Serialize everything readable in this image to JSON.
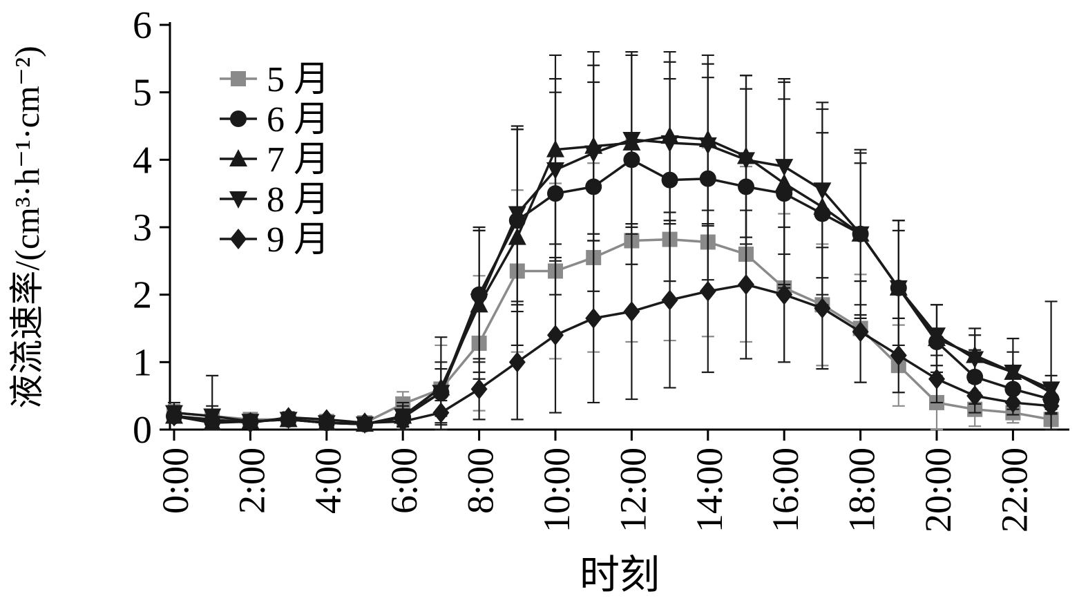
{
  "figure": {
    "background": "#ffffff"
  },
  "colors": {
    "axis": "#000000",
    "gray_series": "#8a8a8a",
    "black_series": "#1a1a1a"
  },
  "chart_data": {
    "type": "line",
    "title": "",
    "xlabel": "时刻",
    "ylabel": "液流速率/(cm³·h⁻¹·cm⁻²)",
    "ylim": [
      0,
      6
    ],
    "yticks": [
      0,
      1,
      2,
      3,
      4,
      5,
      6
    ],
    "x_hours": [
      0,
      1,
      2,
      3,
      4,
      5,
      6,
      7,
      8,
      9,
      10,
      11,
      12,
      13,
      14,
      15,
      16,
      17,
      18,
      19,
      20,
      21,
      22,
      23
    ],
    "xtick_hours": [
      0,
      2,
      4,
      6,
      8,
      10,
      12,
      14,
      16,
      18,
      20,
      22
    ],
    "xtick_labels": [
      "0:00",
      "2:00",
      "4:00",
      "6:00",
      "8:00",
      "10:00",
      "12:00",
      "14:00",
      "16:00",
      "18:00",
      "20:00",
      "22:00"
    ],
    "grid": false,
    "legend_position": "upper-left",
    "error_bars": true,
    "series": [
      {
        "name": "5 月",
        "marker": "square",
        "color": "#8a8a8a",
        "values": [
          0.25,
          0.2,
          0.15,
          0.15,
          0.12,
          0.1,
          0.38,
          0.6,
          1.28,
          2.35,
          2.35,
          2.55,
          2.8,
          2.82,
          2.78,
          2.6,
          2.1,
          1.85,
          1.5,
          0.95,
          0.4,
          0.3,
          0.25,
          0.15
        ],
        "errors": [
          0.12,
          0.08,
          0.05,
          0.05,
          0.05,
          0.04,
          0.18,
          0.65,
          1.0,
          1.2,
          1.3,
          1.4,
          1.5,
          1.5,
          1.4,
          1.3,
          1.1,
          0.9,
          0.8,
          0.6,
          0.4,
          0.25,
          0.15,
          0.1
        ]
      },
      {
        "name": "6 月",
        "marker": "circle",
        "color": "#1a1a1a",
        "values": [
          0.2,
          0.12,
          0.12,
          0.15,
          0.1,
          0.08,
          0.18,
          0.55,
          2.0,
          3.1,
          3.5,
          3.6,
          4.0,
          3.7,
          3.72,
          3.6,
          3.5,
          3.2,
          2.9,
          2.1,
          1.3,
          0.78,
          0.6,
          0.45
        ],
        "errors": [
          0.1,
          0.08,
          0.05,
          0.05,
          0.05,
          0.04,
          0.1,
          0.35,
          1.0,
          1.35,
          1.5,
          1.55,
          1.55,
          1.5,
          1.5,
          1.45,
          1.4,
          1.2,
          1.05,
          0.85,
          0.55,
          0.4,
          0.3,
          0.2
        ]
      },
      {
        "name": "7 月",
        "marker": "triangle-up",
        "color": "#1a1a1a",
        "values": [
          0.2,
          0.1,
          0.12,
          0.15,
          0.1,
          0.08,
          0.2,
          0.62,
          1.85,
          2.85,
          4.15,
          4.2,
          4.25,
          4.35,
          4.3,
          4.05,
          3.65,
          3.3,
          2.9,
          2.1,
          1.35,
          1.1,
          0.85,
          0.55
        ],
        "errors": [
          0.1,
          0.7,
          0.05,
          0.05,
          0.05,
          0.04,
          0.2,
          0.75,
          1.1,
          1.6,
          1.4,
          1.4,
          1.35,
          1.25,
          1.25,
          1.2,
          1.5,
          1.45,
          1.25,
          1.0,
          0.5,
          0.4,
          0.3,
          0.25
        ]
      },
      {
        "name": "8 月",
        "marker": "triangle-down",
        "color": "#1a1a1a",
        "values": [
          0.25,
          0.2,
          0.12,
          0.15,
          0.1,
          0.08,
          0.2,
          0.55,
          1.9,
          3.2,
          3.85,
          4.1,
          4.3,
          4.25,
          4.22,
          4.0,
          3.9,
          3.55,
          2.9,
          2.1,
          1.4,
          1.05,
          0.85,
          0.6
        ],
        "errors": [
          0.15,
          0.15,
          0.08,
          0.08,
          0.05,
          0.04,
          0.15,
          0.45,
          1.05,
          1.3,
          1.35,
          1.3,
          1.3,
          1.2,
          1.2,
          1.25,
          1.3,
          1.3,
          1.2,
          1.0,
          0.45,
          0.35,
          0.5,
          1.3
        ]
      },
      {
        "name": "9 月",
        "marker": "diamond",
        "color": "#1a1a1a",
        "values": [
          0.2,
          0.15,
          0.1,
          0.18,
          0.15,
          0.1,
          0.12,
          0.25,
          0.6,
          1.0,
          1.4,
          1.65,
          1.75,
          1.92,
          2.05,
          2.15,
          2.0,
          1.8,
          1.45,
          1.1,
          0.75,
          0.5,
          0.4,
          0.35
        ],
        "errors": [
          0.1,
          0.08,
          0.05,
          0.08,
          0.05,
          0.04,
          0.08,
          0.18,
          0.45,
          0.85,
          1.15,
          1.25,
          1.3,
          1.3,
          1.2,
          1.1,
          1.0,
          0.9,
          0.75,
          0.55,
          0.35,
          0.25,
          0.18,
          0.12
        ]
      }
    ]
  }
}
